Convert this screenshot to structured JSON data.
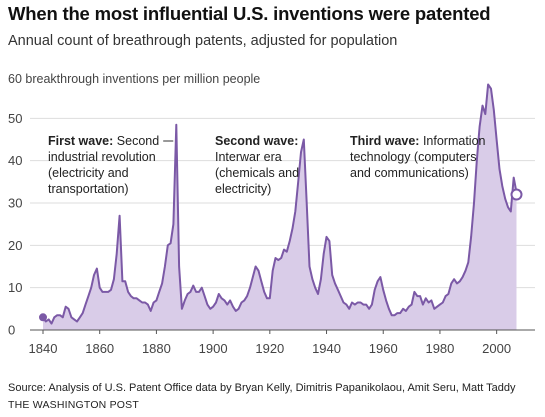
{
  "header": {
    "title": "When the most influential U.S. inventions were patented",
    "subtitle": "Annual count of breathrough patents, adjusted for population"
  },
  "footer": {
    "source": "Source: Analysis of U.S. Patent Office data by Bryan Kelly, Dimitris Papanikolaou, Amit Seru, Matt Taddy",
    "credit": "THE WASHINGTON POST"
  },
  "colors": {
    "line": "#7b59a6",
    "fill": "#d9cce8",
    "grid": "#dddddd",
    "axis": "#555555"
  },
  "chart_data": {
    "type": "area",
    "title": "When the most influential U.S. inventions were patented",
    "subtitle": "Annual count of breathrough patents, adjusted for population",
    "unit_label": "60 breakthrough inventions per million people",
    "ylim": [
      0,
      60
    ],
    "yticks": [
      0,
      10,
      20,
      30,
      40,
      50
    ],
    "xlim": [
      1840,
      2010
    ],
    "xticks": [
      1840,
      1860,
      1880,
      1900,
      1920,
      1940,
      1960,
      1980,
      2000
    ],
    "grid": true,
    "x": [
      1840,
      1841,
      1842,
      1843,
      1844,
      1845,
      1846,
      1847,
      1848,
      1849,
      1850,
      1851,
      1852,
      1853,
      1854,
      1855,
      1856,
      1857,
      1858,
      1859,
      1860,
      1861,
      1862,
      1863,
      1864,
      1865,
      1866,
      1867,
      1868,
      1869,
      1870,
      1871,
      1872,
      1873,
      1874,
      1875,
      1876,
      1877,
      1878,
      1879,
      1880,
      1881,
      1882,
      1883,
      1884,
      1885,
      1886,
      1887,
      1888,
      1889,
      1890,
      1891,
      1892,
      1893,
      1894,
      1895,
      1896,
      1897,
      1898,
      1899,
      1900,
      1901,
      1902,
      1903,
      1904,
      1905,
      1906,
      1907,
      1908,
      1909,
      1910,
      1911,
      1912,
      1913,
      1914,
      1915,
      1916,
      1917,
      1918,
      1919,
      1920,
      1921,
      1922,
      1923,
      1924,
      1925,
      1926,
      1927,
      1928,
      1929,
      1930,
      1931,
      1932,
      1933,
      1934,
      1935,
      1936,
      1937,
      1938,
      1939,
      1940,
      1941,
      1942,
      1943,
      1944,
      1945,
      1946,
      1947,
      1948,
      1949,
      1950,
      1951,
      1952,
      1953,
      1954,
      1955,
      1956,
      1957,
      1958,
      1959,
      1960,
      1961,
      1962,
      1963,
      1964,
      1965,
      1966,
      1967,
      1968,
      1969,
      1970,
      1971,
      1972,
      1973,
      1974,
      1975,
      1976,
      1977,
      1978,
      1979,
      1980,
      1981,
      1982,
      1983,
      1984,
      1985,
      1986,
      1987,
      1988,
      1989,
      1990,
      1991,
      1992,
      1993,
      1994,
      1995,
      1996,
      1997,
      1998,
      1999,
      2000,
      2001,
      2002,
      2003,
      2004,
      2005,
      2006,
      2007
    ],
    "values": [
      3,
      2,
      2.5,
      1.5,
      3,
      3.5,
      3.5,
      3,
      5.5,
      5,
      3,
      2.5,
      2,
      3,
      4,
      6,
      8,
      10,
      13,
      14.5,
      10,
      9,
      9,
      9,
      9.5,
      12,
      18,
      27,
      11.5,
      11.5,
      9,
      8,
      7.5,
      7.5,
      7,
      6.5,
      6.5,
      6,
      4.5,
      6.5,
      7,
      9,
      11,
      15,
      20,
      20.5,
      25,
      48.5,
      15,
      5,
      7,
      8.5,
      9,
      10.5,
      9,
      9,
      10,
      8,
      6,
      5,
      5.5,
      6.5,
      8.5,
      7.5,
      7,
      6,
      7,
      5.5,
      4.5,
      5,
      6.5,
      7,
      8,
      10,
      12.5,
      15,
      14,
      11.5,
      9,
      7.5,
      7.5,
      14,
      17,
      16.5,
      17,
      19,
      18.5,
      21,
      24,
      28,
      35,
      42,
      45,
      30,
      15,
      12,
      10,
      8.5,
      12,
      18,
      22,
      21,
      13,
      11,
      9.5,
      8,
      6.5,
      6,
      5,
      6.5,
      6,
      6.5,
      6.5,
      6,
      6,
      5,
      6,
      9.5,
      11.5,
      12.5,
      9.5,
      7,
      5,
      3.5,
      3.5,
      4,
      4,
      5,
      4.5,
      5.5,
      6,
      9,
      8,
      8,
      6,
      7.5,
      6.5,
      7,
      5,
      5.5,
      6,
      6.5,
      8,
      8.5,
      11,
      12,
      11,
      11.5,
      12.5,
      14,
      16,
      22,
      30,
      40,
      48,
      53,
      51,
      58,
      57,
      52,
      45,
      38,
      34,
      31,
      29,
      28,
      36,
      32.5
    ],
    "start_marker": [
      1840,
      3
    ],
    "end_marker": [
      2007,
      32
    ],
    "annotations": [
      {
        "name": "first-wave",
        "bold": "First wave:",
        "text": "Second",
        "lines": [
          "industrial revolution",
          "(electricity and",
          "transportation)"
        ],
        "pointer_x": 1887,
        "pointer_y": 46
      },
      {
        "name": "second-wave",
        "bold": "Second wave:",
        "text": "",
        "lines": [
          "Interwar era",
          "(chemicals and",
          "electricity)"
        ],
        "pointer_x": 1932,
        "pointer_y": 46
      },
      {
        "name": "third-wave",
        "bold": "Third wave:",
        "text": "Information",
        "lines": [
          "technology (computers",
          "and communications)"
        ],
        "pointer_x": 1993,
        "pointer_y": 46
      }
    ]
  }
}
